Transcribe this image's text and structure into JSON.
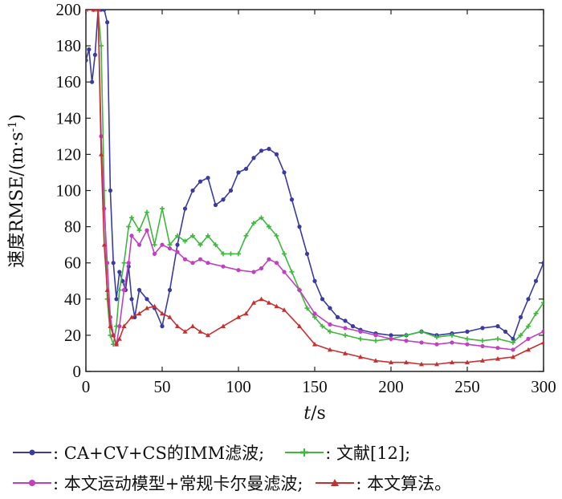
{
  "chart_data": {
    "type": "line",
    "title": "",
    "xlabel_var": "t",
    "xlabel_unit": "/s",
    "ylabel_main": "速度RMSE/(m·s",
    "ylabel_sup": "-1",
    "ylabel_close": ")",
    "xlim": [
      0,
      300
    ],
    "ylim": [
      0,
      200
    ],
    "xticks": [
      "0",
      "50",
      "100",
      "150",
      "200",
      "250",
      "300"
    ],
    "yticks": [
      "0",
      "20",
      "40",
      "60",
      "80",
      "100",
      "120",
      "140",
      "160",
      "180",
      "200"
    ],
    "legend_position": "bottom",
    "series": [
      {
        "name": ": CA+CV+CS的IMM滤波;",
        "color": "#3a3aa0",
        "x": [
          0,
          2,
          4,
          6,
          8,
          10,
          12,
          14,
          16,
          18,
          20,
          22,
          24,
          26,
          28,
          30,
          32,
          35,
          40,
          45,
          50,
          55,
          60,
          65,
          70,
          75,
          80,
          85,
          90,
          95,
          100,
          105,
          110,
          115,
          120,
          125,
          130,
          135,
          140,
          145,
          150,
          155,
          160,
          165,
          170,
          175,
          180,
          190,
          200,
          210,
          220,
          230,
          240,
          250,
          260,
          270,
          275,
          280,
          285,
          290,
          295,
          300
        ],
        "y": [
          172,
          178,
          160,
          175,
          205,
          210,
          200,
          193,
          100,
          60,
          40,
          55,
          50,
          45,
          58,
          40,
          30,
          45,
          40,
          35,
          25,
          45,
          70,
          90,
          100,
          105,
          107,
          92,
          95,
          100,
          110,
          112,
          118,
          122,
          123,
          120,
          110,
          95,
          80,
          65,
          50,
          40,
          35,
          30,
          28,
          25,
          23,
          21,
          20,
          20,
          22,
          20,
          21,
          22,
          24,
          25,
          22,
          18,
          30,
          40,
          50,
          60
        ]
      },
      {
        "name": ": 文献[12];",
        "color": "#3cb83c",
        "x": [
          0,
          5,
          8,
          10,
          12,
          14,
          16,
          18,
          20,
          22,
          25,
          28,
          30,
          35,
          40,
          45,
          50,
          55,
          60,
          65,
          70,
          75,
          80,
          85,
          90,
          95,
          100,
          105,
          110,
          115,
          120,
          125,
          130,
          135,
          140,
          145,
          150,
          155,
          160,
          170,
          180,
          190,
          200,
          210,
          220,
          230,
          240,
          250,
          260,
          270,
          280,
          285,
          290,
          295,
          300
        ],
        "y": [
          200,
          200,
          200,
          180,
          100,
          40,
          20,
          15,
          25,
          45,
          60,
          80,
          85,
          78,
          88,
          70,
          90,
          70,
          75,
          72,
          75,
          70,
          75,
          70,
          65,
          65,
          65,
          75,
          82,
          85,
          80,
          75,
          65,
          55,
          45,
          35,
          30,
          25,
          22,
          20,
          18,
          17,
          18,
          20,
          22,
          19,
          20,
          18,
          17,
          18,
          16,
          20,
          25,
          32,
          38
        ]
      },
      {
        "name": ": 本文运动模型+常规卡尔曼滤波;",
        "color": "#c040c0",
        "x": [
          0,
          5,
          8,
          10,
          12,
          14,
          16,
          18,
          20,
          22,
          25,
          28,
          30,
          35,
          40,
          45,
          50,
          55,
          60,
          65,
          70,
          75,
          80,
          90,
          100,
          110,
          115,
          120,
          125,
          130,
          140,
          150,
          160,
          170,
          180,
          190,
          200,
          210,
          220,
          230,
          240,
          250,
          260,
          270,
          280,
          290,
          300
        ],
        "y": [
          200,
          200,
          200,
          130,
          90,
          60,
          30,
          20,
          15,
          25,
          45,
          60,
          75,
          70,
          78,
          65,
          70,
          68,
          66,
          62,
          60,
          62,
          60,
          58,
          56,
          55,
          57,
          62,
          60,
          55,
          45,
          32,
          26,
          24,
          22,
          20,
          18,
          17,
          16,
          15,
          16,
          15,
          14,
          13,
          12,
          18,
          22
        ]
      },
      {
        "name": ": 本文算法。",
        "color": "#c83030",
        "x": [
          0,
          5,
          8,
          10,
          12,
          14,
          16,
          18,
          20,
          22,
          25,
          30,
          35,
          40,
          45,
          50,
          55,
          60,
          65,
          70,
          75,
          80,
          90,
          100,
          105,
          110,
          115,
          120,
          125,
          130,
          140,
          150,
          160,
          170,
          180,
          190,
          200,
          210,
          220,
          230,
          240,
          250,
          260,
          270,
          280,
          290,
          300
        ],
        "y": [
          200,
          200,
          200,
          120,
          70,
          45,
          25,
          20,
          15,
          18,
          25,
          30,
          32,
          35,
          36,
          32,
          30,
          25,
          22,
          25,
          22,
          20,
          25,
          30,
          32,
          38,
          40,
          38,
          36,
          34,
          25,
          15,
          12,
          10,
          8,
          6,
          5,
          5,
          4,
          4,
          5,
          5,
          6,
          7,
          8,
          12,
          16
        ]
      }
    ]
  }
}
